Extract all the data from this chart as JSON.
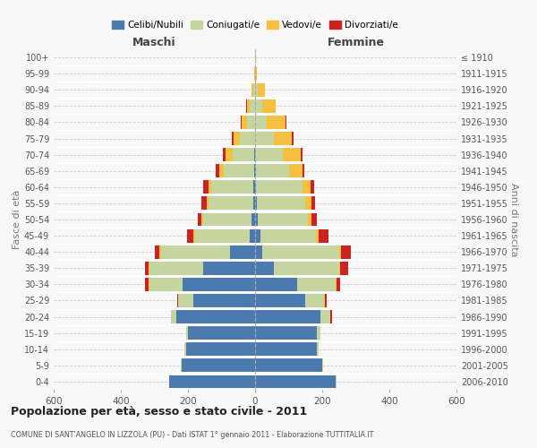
{
  "age_groups": [
    "0-4",
    "5-9",
    "10-14",
    "15-19",
    "20-24",
    "25-29",
    "30-34",
    "35-39",
    "40-44",
    "45-49",
    "50-54",
    "55-59",
    "60-64",
    "65-69",
    "70-74",
    "75-79",
    "80-84",
    "85-89",
    "90-94",
    "95-99",
    "100+"
  ],
  "birth_years": [
    "2006-2010",
    "2001-2005",
    "1996-2000",
    "1991-1995",
    "1986-1990",
    "1981-1985",
    "1976-1980",
    "1971-1975",
    "1966-1970",
    "1961-1965",
    "1956-1960",
    "1951-1955",
    "1946-1950",
    "1941-1945",
    "1936-1940",
    "1931-1935",
    "1926-1930",
    "1921-1925",
    "1916-1920",
    "1911-1915",
    "≤ 1910"
  ],
  "colors": {
    "celibe": "#4c7aaf",
    "coniugato": "#c5d5a0",
    "vedovo": "#f5c040",
    "divorziato": "#cc2222"
  },
  "male": {
    "celibe": [
      255,
      220,
      205,
      200,
      235,
      185,
      215,
      155,
      75,
      15,
      10,
      5,
      5,
      3,
      2,
      0,
      0,
      0,
      0,
      0,
      0
    ],
    "coniugato": [
      2,
      2,
      5,
      5,
      15,
      45,
      100,
      160,
      205,
      165,
      145,
      135,
      125,
      90,
      65,
      45,
      25,
      15,
      5,
      1,
      0
    ],
    "vedovo": [
      0,
      0,
      0,
      0,
      0,
      0,
      2,
      2,
      5,
      5,
      5,
      5,
      10,
      15,
      20,
      20,
      15,
      10,
      5,
      2,
      0
    ],
    "divorziato": [
      0,
      0,
      0,
      0,
      2,
      2,
      10,
      12,
      15,
      18,
      12,
      15,
      15,
      10,
      8,
      5,
      2,
      2,
      0,
      0,
      0
    ]
  },
  "female": {
    "nubile": [
      240,
      200,
      185,
      185,
      195,
      150,
      125,
      55,
      20,
      15,
      8,
      5,
      3,
      2,
      0,
      0,
      0,
      0,
      0,
      0,
      0
    ],
    "coniugata": [
      2,
      3,
      5,
      10,
      30,
      55,
      115,
      195,
      230,
      165,
      148,
      143,
      138,
      100,
      82,
      55,
      35,
      20,
      8,
      1,
      0
    ],
    "vedova": [
      0,
      0,
      0,
      0,
      0,
      2,
      2,
      3,
      5,
      8,
      12,
      20,
      25,
      40,
      55,
      55,
      55,
      40,
      20,
      5,
      2
    ],
    "divorziata": [
      0,
      0,
      0,
      0,
      3,
      5,
      12,
      25,
      30,
      30,
      15,
      10,
      10,
      5,
      5,
      5,
      2,
      2,
      0,
      0,
      0
    ]
  },
  "title": "Popolazione per età, sesso e stato civile - 2011",
  "subtitle": "COMUNE DI SANT'ANGELO IN LIZZOLA (PU) - Dati ISTAT 1° gennaio 2011 - Elaborazione TUTTITALIA.IT",
  "xlabel_left": "Maschi",
  "xlabel_right": "Femmine",
  "ylabel_left": "Fasce di età",
  "ylabel_right": "Anni di nascita",
  "xlim": 600,
  "bg_color": "#f8f8f8",
  "grid_color": "#cccccc",
  "legend_labels": [
    "Celibi/Nubili",
    "Coniugati/e",
    "Vedovi/e",
    "Divorziati/e"
  ]
}
